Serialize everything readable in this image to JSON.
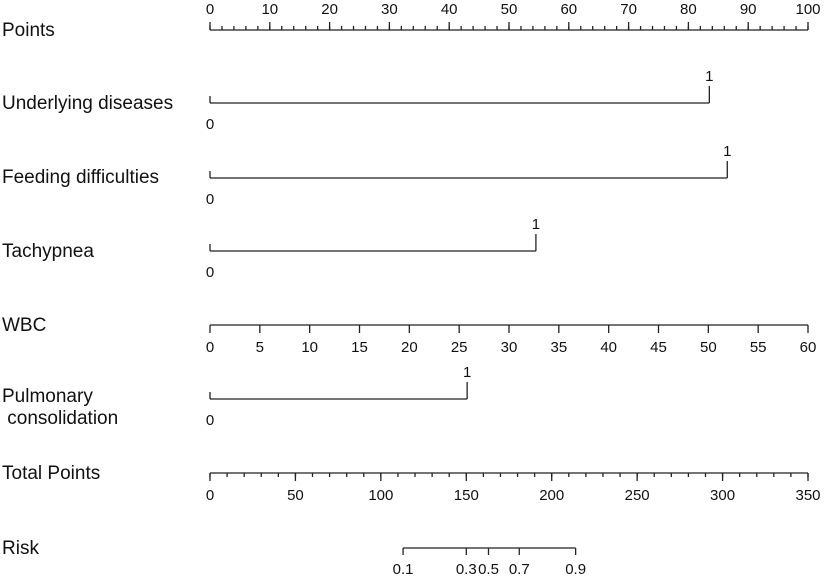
{
  "chart_data": {
    "type": "nomogram",
    "title": "",
    "rows": [
      {
        "label": "Points",
        "kind": "scale",
        "range": [
          0,
          100
        ],
        "major_ticks": [
          0,
          10,
          20,
          30,
          40,
          50,
          60,
          70,
          80,
          90,
          100
        ],
        "minor_step": 2,
        "tick_labels_position": "above"
      },
      {
        "label": "Underlying diseases",
        "kind": "categorical",
        "levels": [
          {
            "label": "0",
            "points": 0
          },
          {
            "label": "1",
            "points": 83.5
          }
        ]
      },
      {
        "label": "Feeding difficulties",
        "kind": "categorical",
        "levels": [
          {
            "label": "0",
            "points": 0
          },
          {
            "label": "1",
            "points": 86.5
          }
        ]
      },
      {
        "label": "Tachypnea",
        "kind": "categorical",
        "levels": [
          {
            "label": "0",
            "points": 0
          },
          {
            "label": "1",
            "points": 54.5
          }
        ]
      },
      {
        "label": "WBC",
        "kind": "scale",
        "range": [
          0,
          60
        ],
        "major_ticks": [
          0,
          5,
          10,
          15,
          20,
          25,
          30,
          35,
          40,
          45,
          50,
          55,
          60
        ],
        "minor_step": null,
        "tick_labels_position": "below"
      },
      {
        "label": "Pulmonary\nconsolidation",
        "label_lines": [
          "Pulmonary",
          " consolidation"
        ],
        "kind": "categorical",
        "levels": [
          {
            "label": "0",
            "points": 0
          },
          {
            "label": "1",
            "points": 43
          }
        ]
      },
      {
        "label": "Total Points",
        "kind": "scale",
        "range": [
          0,
          350
        ],
        "major_ticks": [
          0,
          50,
          100,
          150,
          200,
          250,
          300,
          350
        ],
        "minor_step": 10,
        "tick_labels_position": "below"
      },
      {
        "label": "Risk",
        "kind": "mapped_scale",
        "tick_values": [
          0.1,
          0.3,
          0.5,
          0.7,
          0.9
        ],
        "tick_labels": [
          "0.1",
          "0.3",
          "0.5",
          "0.7",
          "0.9"
        ],
        "tick_total_points": [
          113,
          150,
          163,
          181,
          214
        ],
        "tick_labels_position": "below"
      }
    ]
  }
}
